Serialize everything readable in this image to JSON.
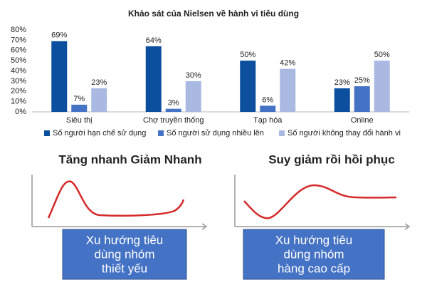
{
  "chart_data": {
    "type": "bar",
    "title": "Khảo sát của Nielsen về hành vi tiêu dùng",
    "categories": [
      "Siêu thị",
      "Chợ truyền thống",
      "Tạp hóa",
      "Online"
    ],
    "series": [
      {
        "name": "Số người hạn chế sử dụng",
        "color": "#0b4f9e",
        "values": [
          69,
          64,
          50,
          23
        ],
        "value_labels": [
          "69%",
          "64%",
          "50%",
          "23%"
        ]
      },
      {
        "name": "Số người sử dụng nhiều lên",
        "color": "#4472c4",
        "values": [
          7,
          3,
          6,
          25
        ],
        "value_labels": [
          "7%",
          "3%",
          "6%",
          "25%"
        ]
      },
      {
        "name": "Số người không thay đổi hành vi",
        "color": "#a9b9e2",
        "values": [
          23,
          30,
          42,
          50
        ],
        "value_labels": [
          "23%",
          "30%",
          "42%",
          "50%"
        ]
      }
    ],
    "ylim": [
      0,
      80
    ],
    "yticks": [
      {
        "value": 0,
        "label": "0%"
      },
      {
        "value": 10,
        "label": "10%"
      },
      {
        "value": 20,
        "label": "20%"
      },
      {
        "value": 30,
        "label": "30%"
      },
      {
        "value": 40,
        "label": "40%"
      },
      {
        "value": 50,
        "label": "50%"
      },
      {
        "value": 60,
        "label": "60%"
      },
      {
        "value": 70,
        "label": "70%"
      },
      {
        "value": 80,
        "label": "80%"
      }
    ],
    "grid": false,
    "legend": "bottom"
  },
  "panels": [
    {
      "title": "Tăng nhanh Giảm Nhanh",
      "box_lines": [
        "Xu hướng tiêu",
        "dùng nhóm",
        "thiết yếu"
      ]
    },
    {
      "title": "Suy giảm rồi hồi phục",
      "box_lines": [
        "Xu hướng tiêu",
        "dùng nhóm",
        "hàng cao cấp"
      ]
    }
  ]
}
